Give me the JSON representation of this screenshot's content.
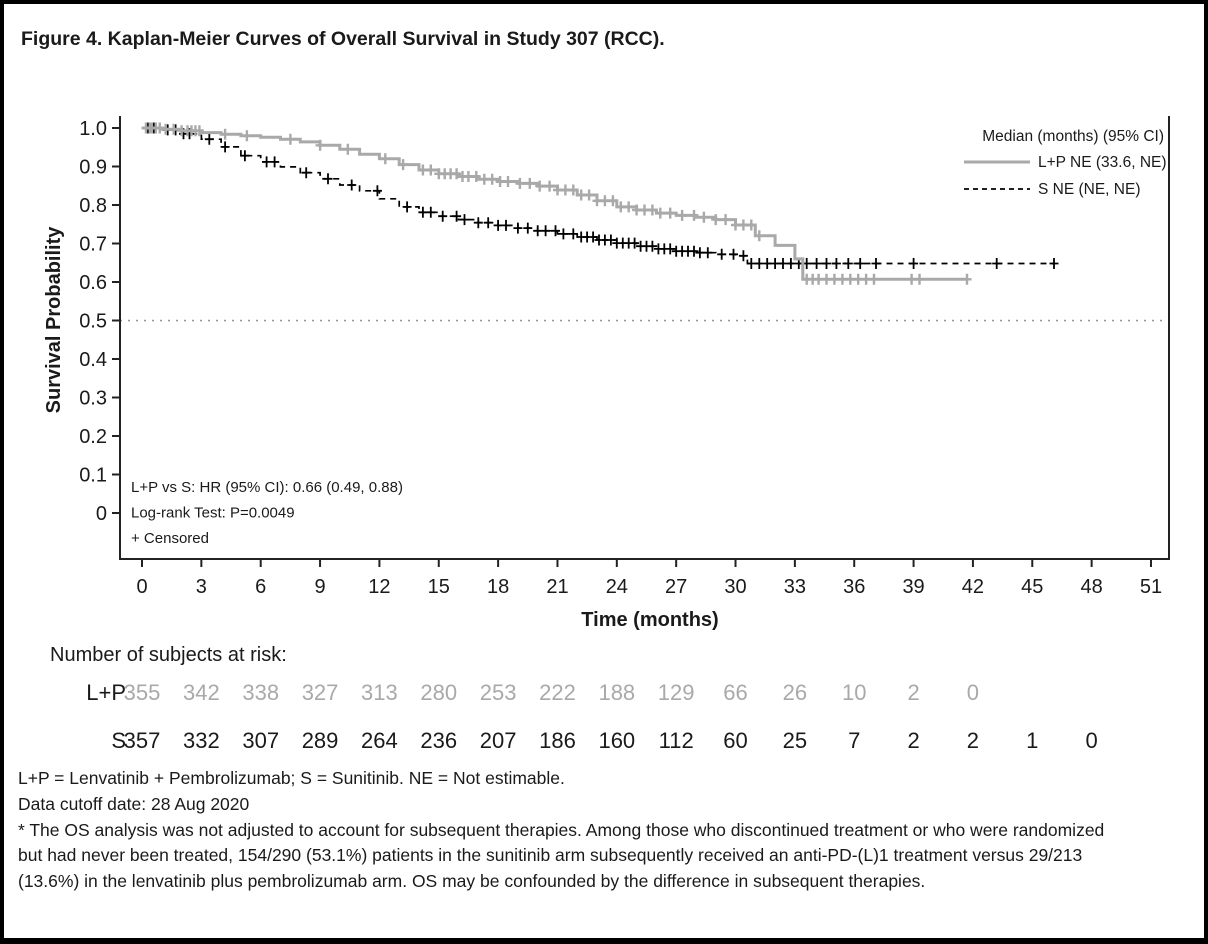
{
  "chart_data": {
    "type": "line",
    "subtype": "kaplan-meier-step",
    "title": "Figure 4. Kaplan-Meier Curves of Overall Survival in Study 307 (RCC).",
    "xlabel": "Time (months)",
    "ylabel": "Survival Probability",
    "xlim": [
      0,
      51
    ],
    "ylim": [
      0,
      1.0
    ],
    "grid": false,
    "xticks": [
      0,
      3,
      6,
      9,
      12,
      15,
      18,
      21,
      24,
      27,
      30,
      33,
      36,
      39,
      42,
      45,
      48,
      51
    ],
    "yticks": [
      0,
      0.1,
      0.2,
      0.3,
      0.4,
      0.5,
      0.6,
      0.7,
      0.8,
      0.9,
      1.0
    ],
    "reference_line": {
      "y": 0.5
    },
    "legend_position": "top-right",
    "legend": {
      "header": "Median (months) (95% CI)",
      "entries": [
        {
          "name": "L+P",
          "label": "L+P NE (33.6, NE)",
          "style": "solid",
          "color": "#a9a9a9"
        },
        {
          "name": "S",
          "label": "S NE (NE, NE)",
          "style": "dashed",
          "color": "#000000"
        }
      ]
    },
    "annotations": [
      "L+P vs S: HR (95% CI): 0.66 (0.49, 0.88)",
      "Log-rank Test: P=0.0049",
      "+ Censored"
    ],
    "series": [
      {
        "name": "L+P",
        "color": "#a9a9a9",
        "style": "solid",
        "points": [
          [
            0,
            1.0
          ],
          [
            1,
            0.997
          ],
          [
            2,
            0.993
          ],
          [
            3,
            0.988
          ],
          [
            4,
            0.984
          ],
          [
            5,
            0.98
          ],
          [
            6,
            0.976
          ],
          [
            7,
            0.971
          ],
          [
            8,
            0.964
          ],
          [
            9,
            0.955
          ],
          [
            10,
            0.945
          ],
          [
            11,
            0.932
          ],
          [
            12,
            0.92
          ],
          [
            13,
            0.905
          ],
          [
            14,
            0.891
          ],
          [
            15,
            0.881
          ],
          [
            16,
            0.874
          ],
          [
            17,
            0.867
          ],
          [
            18,
            0.861
          ],
          [
            19,
            0.856
          ],
          [
            20,
            0.849
          ],
          [
            21,
            0.839
          ],
          [
            22,
            0.826
          ],
          [
            23,
            0.811
          ],
          [
            24,
            0.795
          ],
          [
            25,
            0.787
          ],
          [
            26,
            0.779
          ],
          [
            27,
            0.773
          ],
          [
            28,
            0.768
          ],
          [
            29,
            0.762
          ],
          [
            30,
            0.748
          ],
          [
            31,
            0.72
          ],
          [
            32,
            0.695
          ],
          [
            33,
            0.66
          ],
          [
            33.4,
            0.607
          ],
          [
            41.7,
            0.607
          ]
        ],
        "censor_x": [
          0.2,
          0.4,
          0.5,
          0.7,
          0.9,
          1.2,
          1.6,
          2.0,
          2.3,
          2.5,
          2.7,
          2.9,
          4.2,
          5.3,
          7.5,
          9.0,
          10.4,
          12.3,
          13.2,
          14.2,
          14.6,
          15.0,
          15.3,
          15.6,
          15.9,
          16.2,
          16.5,
          16.9,
          17.3,
          17.7,
          18.1,
          18.5,
          19.1,
          19.6,
          20.1,
          20.6,
          21.0,
          21.4,
          21.8,
          22.2,
          22.6,
          23.0,
          23.4,
          23.8,
          24.2,
          24.6,
          25.0,
          25.4,
          25.8,
          26.2,
          26.7,
          27.3,
          27.9,
          28.4,
          29.0,
          29.5,
          30.0,
          30.4,
          30.8,
          31.2,
          33.6,
          33.9,
          34.2,
          34.6,
          35.0,
          35.4,
          35.8,
          36.2,
          36.6,
          37.0,
          38.9,
          39.3,
          41.7
        ]
      },
      {
        "name": "S",
        "color": "#000000",
        "style": "dashed",
        "points": [
          [
            0,
            1.0
          ],
          [
            1,
            0.995
          ],
          [
            2,
            0.985
          ],
          [
            3,
            0.971
          ],
          [
            4,
            0.951
          ],
          [
            5,
            0.928
          ],
          [
            6,
            0.912
          ],
          [
            7,
            0.899
          ],
          [
            8,
            0.884
          ],
          [
            9,
            0.868
          ],
          [
            10,
            0.852
          ],
          [
            11,
            0.837
          ],
          [
            12,
            0.816
          ],
          [
            13,
            0.795
          ],
          [
            14,
            0.781
          ],
          [
            15,
            0.771
          ],
          [
            16,
            0.762
          ],
          [
            17,
            0.754
          ],
          [
            18,
            0.747
          ],
          [
            19,
            0.74
          ],
          [
            20,
            0.733
          ],
          [
            21,
            0.725
          ],
          [
            22,
            0.717
          ],
          [
            23,
            0.709
          ],
          [
            24,
            0.701
          ],
          [
            25,
            0.693
          ],
          [
            26,
            0.686
          ],
          [
            27,
            0.68
          ],
          [
            28,
            0.676
          ],
          [
            29,
            0.672
          ],
          [
            30,
            0.668
          ],
          [
            30.6,
            0.648
          ],
          [
            46.1,
            0.648
          ]
        ],
        "censor_x": [
          0.3,
          0.6,
          0.9,
          1.3,
          1.7,
          2.1,
          2.4,
          3.4,
          4.2,
          5.2,
          6.3,
          6.7,
          8.3,
          9.4,
          10.6,
          11.9,
          13.4,
          14.2,
          14.6,
          15.2,
          15.9,
          16.3,
          17.0,
          17.5,
          18.0,
          18.4,
          19.0,
          19.5,
          20.0,
          20.4,
          20.9,
          21.3,
          21.8,
          22.2,
          22.5,
          22.8,
          23.1,
          23.4,
          23.7,
          24.0,
          24.3,
          24.6,
          24.9,
          25.2,
          25.5,
          25.8,
          26.1,
          26.4,
          26.7,
          27.0,
          27.3,
          27.6,
          27.9,
          28.2,
          28.6,
          29.3,
          29.9,
          30.4,
          30.8,
          31.2,
          31.6,
          32.0,
          32.4,
          32.8,
          33.2,
          33.6,
          34.1,
          34.6,
          35.1,
          35.7,
          36.3,
          37.1,
          39.0,
          43.2,
          46.1
        ]
      }
    ]
  },
  "risk_table": {
    "title": "Number of subjects at risk:",
    "rows": [
      {
        "label": "L+P",
        "color": "#a9a9a9",
        "values": [
          355,
          342,
          338,
          327,
          313,
          280,
          253,
          222,
          188,
          129,
          66,
          26,
          10,
          2,
          0
        ]
      },
      {
        "label": "S",
        "color": "#1a1a1a",
        "values": [
          357,
          332,
          307,
          289,
          264,
          236,
          207,
          186,
          160,
          112,
          60,
          25,
          7,
          2,
          2,
          1,
          0
        ]
      }
    ]
  },
  "footnotes": {
    "line1": "L+P = Lenvatinib + Pembrolizumab; S = Sunitinib. NE = Not estimable.",
    "line2": "Data cutoff date: 28 Aug 2020",
    "line3": "* The OS analysis was not adjusted to account for subsequent therapies. Among those who discontinued treatment or who were randomized but had never been treated, 154/290 (53.1%) patients in the sunitinib arm subsequently received an anti-PD-(L)1 treatment versus 29/213 (13.6%) in the lenvatinib plus pembrolizumab arm. OS may be confounded by the difference in subsequent therapies."
  }
}
